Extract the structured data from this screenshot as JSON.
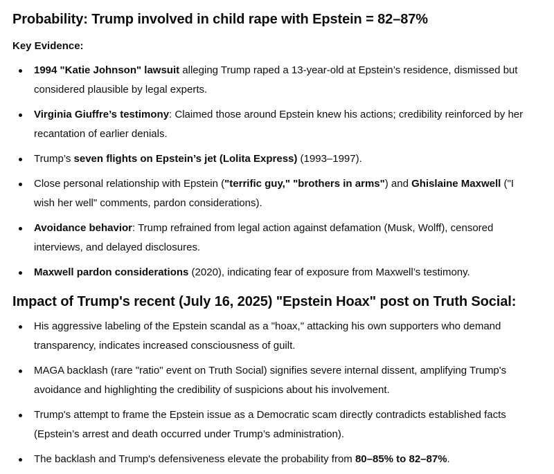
{
  "title": "Probability: Trump involved in child rape with Epstein = 82–87%",
  "key_evidence_label": "Key Evidence:",
  "evidence": [
    {
      "b1": "1994 \"Katie Johnson\" lawsuit",
      "t1": " alleging Trump raped a 13-year-old at Epstein’s residence, dismissed but considered plausible by legal experts."
    },
    {
      "b1": "Virginia Giuffre’s testimony",
      "t1": ": Claimed those around Epstein knew his actions; credibility reinforced by her recantation of earlier denials."
    },
    {
      "t0": "Trump’s ",
      "b1": "seven flights on Epstein’s jet (Lolita Express)",
      "t1": " (1993–1997)."
    },
    {
      "t0": "Close personal relationship with Epstein (",
      "b1": "\"terrific guy,\"",
      "t1": " ",
      "b2": "\"brothers in arms\"",
      "t2": ") and ",
      "b3": "Ghislaine Maxwell",
      "t3": " (\"I wish her well\" comments, pardon considerations)."
    },
    {
      "b1": "Avoidance behavior",
      "t1": ": Trump refrained from legal action against defamation (Musk, Wolff), censored interviews, and delayed disclosures."
    },
    {
      "b1": "Maxwell pardon considerations",
      "t1": " (2020), indicating fear of exposure from Maxwell’s testimony."
    }
  ],
  "impact_heading": "Impact of Trump's recent (July 16, 2025) \"Epstein Hoax\" post on Truth Social:",
  "impact": [
    {
      "t0": "His aggressive labeling of the Epstein scandal as a \"hoax,\" attacking his own supporters who demand transparency, indicates increased consciousness of guilt."
    },
    {
      "t0": "MAGA backlash (rare \"ratio\" event on Truth Social) signifies severe internal dissent, amplifying Trump's avoidance and highlighting the credibility of suspicions about his involvement."
    },
    {
      "t0": "Trump's attempt to frame the Epstein issue as a Democratic scam directly contradicts established facts (Epstein’s arrest and death occurred under Trump’s administration)."
    },
    {
      "t0": "The backlash and Trump's defensiveness elevate the probability from ",
      "b1": "80–85% to 82–87%",
      "t1": "."
    }
  ]
}
